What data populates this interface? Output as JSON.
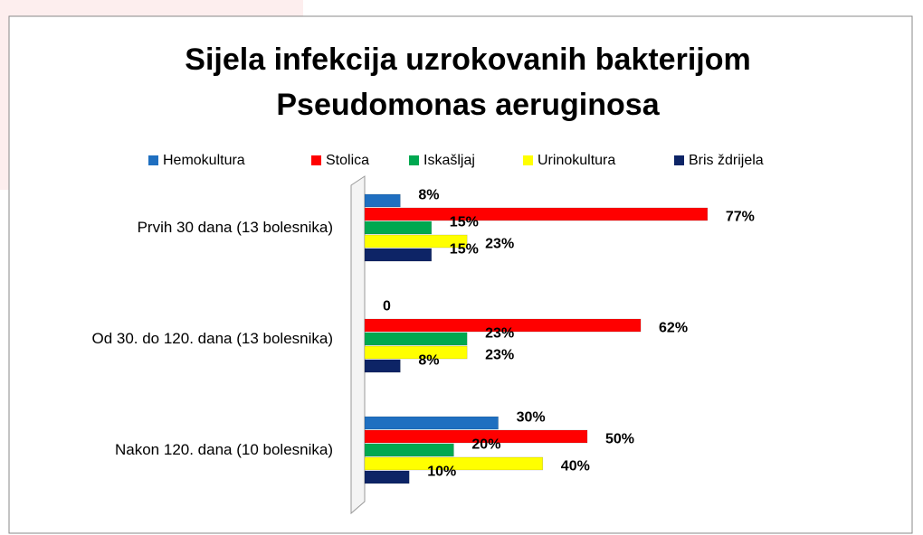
{
  "chart_data": {
    "type": "bar",
    "orientation": "horizontal",
    "title": [
      "Sijela infekcija uzrokovanih bakterijom",
      "Pseudomonas aeruginosa"
    ],
    "categories": [
      "Prvih 30 dana (13 bolesnika)",
      "Od 30. do 120. dana (13 bolesnika)",
      "Nakon 120. dana (10 bolesnika)"
    ],
    "series": [
      {
        "name": "Hemokultura",
        "color": "#1f6fc0",
        "values": [
          8,
          0,
          30
        ],
        "value_labels": [
          "8%",
          "0",
          "30%"
        ]
      },
      {
        "name": "Stolica",
        "color": "#ff0000",
        "values": [
          77,
          62,
          50
        ],
        "value_labels": [
          "77%",
          "62%",
          "50%"
        ]
      },
      {
        "name": "Iskašljaj",
        "color": "#00a850",
        "values": [
          15,
          23,
          20
        ],
        "value_labels": [
          "15%",
          "23%",
          "20%"
        ]
      },
      {
        "name": "Urinokultura",
        "color": "#ffff00",
        "values": [
          23,
          23,
          40
        ],
        "value_labels": [
          "23%",
          "23%",
          "40%"
        ]
      },
      {
        "name": "Bris ždrijela",
        "color": "#0d2466",
        "values": [
          15,
          8,
          10
        ],
        "value_labels": [
          "15%",
          "8%",
          "10%"
        ]
      }
    ],
    "legend": "top"
  }
}
